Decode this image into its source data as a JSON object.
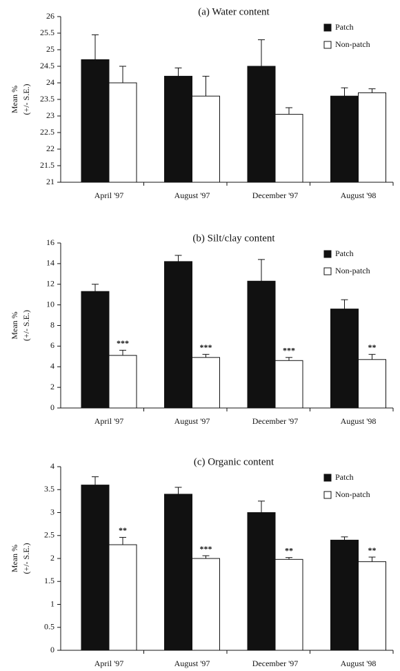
{
  "chart_data": [
    {
      "type": "bar",
      "title": "(a) Water content",
      "y_label": [
        "Mean %",
        "(+/- S.E.)"
      ],
      "categories": [
        "April '97",
        "August '97",
        "December '97",
        "August '98"
      ],
      "series": [
        {
          "name": "Patch",
          "color": "#111111",
          "values": [
            24.7,
            24.2,
            24.5,
            23.6
          ],
          "errors": [
            0.75,
            0.25,
            0.8,
            0.25
          ]
        },
        {
          "name": "Non-patch",
          "color": "#ffffff",
          "values": [
            24.0,
            23.6,
            23.05,
            23.7
          ],
          "errors": [
            0.5,
            0.6,
            0.2,
            0.12
          ]
        }
      ],
      "ylim": [
        21,
        26
      ],
      "yticks": [
        21,
        21.5,
        22,
        22.5,
        23,
        23.5,
        24,
        24.5,
        25,
        25.5,
        26
      ],
      "legend": "upper right"
    },
    {
      "type": "bar",
      "title": "(b) Silt/clay content",
      "y_label": [
        "Mean %",
        "(+/- S.E.)"
      ],
      "categories": [
        "April '97",
        "August '97",
        "December '97",
        "August '98"
      ],
      "series": [
        {
          "name": "Patch",
          "color": "#111111",
          "values": [
            11.3,
            14.2,
            12.3,
            9.6
          ],
          "errors": [
            0.7,
            0.6,
            2.1,
            0.9
          ]
        },
        {
          "name": "Non-patch",
          "color": "#ffffff",
          "values": [
            5.1,
            4.9,
            4.6,
            4.7
          ],
          "errors": [
            0.5,
            0.3,
            0.3,
            0.5
          ],
          "annotations": [
            "***",
            "***",
            "***",
            "**"
          ]
        }
      ],
      "ylim": [
        0,
        16
      ],
      "yticks": [
        0,
        2,
        4,
        6,
        8,
        10,
        12,
        14,
        16
      ],
      "legend": "upper right"
    },
    {
      "type": "bar",
      "title": "(c) Organic content",
      "y_label": [
        "Mean %",
        "(+/- S.E.)"
      ],
      "categories": [
        "April '97",
        "August '97",
        "December '97",
        "August '98"
      ],
      "series": [
        {
          "name": "Patch",
          "color": "#111111",
          "values": [
            3.6,
            3.4,
            3.0,
            2.4
          ],
          "errors": [
            0.18,
            0.15,
            0.25,
            0.07
          ]
        },
        {
          "name": "Non-patch",
          "color": "#ffffff",
          "values": [
            2.3,
            2.0,
            1.98,
            1.93
          ],
          "errors": [
            0.16,
            0.06,
            0.04,
            0.1
          ],
          "annotations": [
            "**",
            "***",
            "**",
            "**"
          ]
        }
      ],
      "ylim": [
        0,
        4
      ],
      "yticks": [
        0,
        0.5,
        1,
        1.5,
        2,
        2.5,
        3,
        3.5,
        4
      ],
      "legend": "upper right"
    }
  ]
}
